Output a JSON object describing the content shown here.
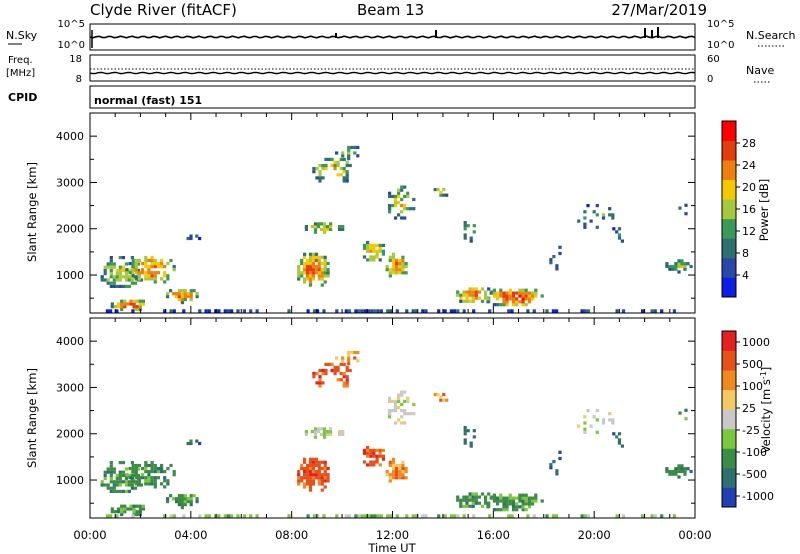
{
  "header": {
    "station": "Clyde River (fitACF)",
    "beam": "Beam 13",
    "date": "27/Mar/2019"
  },
  "top_panel": {
    "left_label": "N.Sky",
    "left_ticks": [
      "10^5",
      "10^0"
    ],
    "right_label": "N.Search",
    "right_ticks": [
      "10^5",
      "10^0"
    ]
  },
  "freq_panel": {
    "left_label_1": "Freq.",
    "left_label_2": "[MHz]",
    "left_ticks": [
      "18",
      "8"
    ],
    "right_label": "Nave",
    "right_ticks": [
      "60",
      "0"
    ]
  },
  "cpid": {
    "label": "CPID",
    "value": "normal (fast) 151"
  },
  "colors": {
    "power": [
      "#0a1ee6",
      "#2847a8",
      "#2e6f6f",
      "#3a9a55",
      "#a6c83c",
      "#f5c800",
      "#f07f0f",
      "#e23c0f",
      "#ff0000"
    ],
    "velocity": [
      "#e62020",
      "#e8501a",
      "#f08a1e",
      "#f5c864",
      "#c8c8c8",
      "#7ac83c",
      "#3c8c46",
      "#2e6f6f",
      "#2040b4"
    ]
  },
  "chart_data": [
    {
      "type": "heatmap",
      "name": "power",
      "ylabel": "Slant Range [km]",
      "y_ticks": [
        "1000",
        "2000",
        "3000",
        "4000"
      ],
      "ylim": [
        180,
        4500
      ],
      "xlim": [
        0,
        24
      ],
      "colorbar_label": "Power [dB]",
      "colorbar_ticks": [
        "4",
        "8",
        "12",
        "16",
        "20",
        "24",
        "28"
      ],
      "colorbar_range": [
        0,
        32
      ]
    },
    {
      "type": "heatmap",
      "name": "velocity",
      "ylabel": "Slant Range [km]",
      "y_ticks": [
        "1000",
        "2000",
        "3000",
        "4000"
      ],
      "ylim": [
        180,
        4500
      ],
      "xlim": [
        0,
        24
      ],
      "xlabel": "Time UT",
      "x_ticks": [
        "00:00",
        "04:00",
        "08:00",
        "12:00",
        "16:00",
        "20:00",
        "00:00"
      ],
      "colorbar_label": "Velocity [m s^-1]",
      "colorbar_ticks": [
        "1000",
        "500",
        "100",
        "25",
        "-25",
        "-100",
        "-500",
        "-1000"
      ]
    }
  ]
}
